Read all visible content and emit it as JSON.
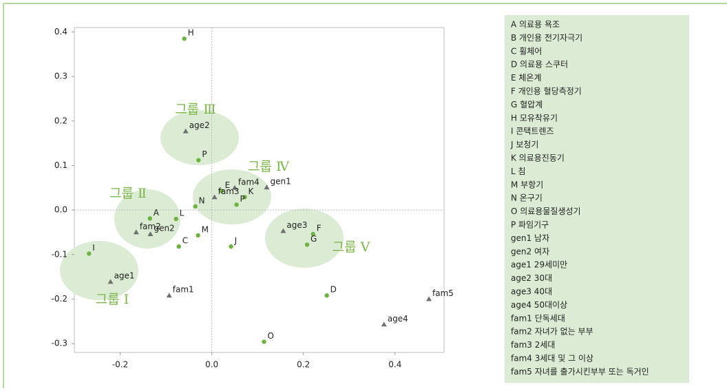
{
  "chart_data": {
    "type": "scatter",
    "xlim": [
      -0.3,
      0.507
    ],
    "ylim": [
      -0.32,
      0.41
    ],
    "xticks": [
      -0.2,
      {
        "value": 0,
        "label": "0.0"
      },
      0.2,
      0.4
    ],
    "yticks": [
      0.4,
      0.3,
      0.2,
      0.1,
      {
        "value": 0,
        "label": "0.0"
      },
      -0.1,
      -0.2,
      -0.3
    ],
    "series": [
      {
        "color": "#6db33f",
        "marker": "circle",
        "labels": [
          "H",
          "P",
          "E",
          "K",
          "P",
          "N",
          "A",
          "L",
          "M",
          "C",
          "J",
          "I",
          "F",
          "G",
          "D",
          "O"
        ],
        "x": [
          -0.06,
          -0.029,
          0.021,
          0.072,
          0.054,
          -0.036,
          -0.135,
          -0.078,
          -0.03,
          -0.072,
          0.042,
          -0.268,
          0.221,
          0.208,
          0.251,
          0.114
        ],
        "values": [
          0.385,
          0.112,
          0.043,
          0.029,
          0.012,
          0.008,
          -0.019,
          -0.02,
          -0.057,
          -0.082,
          -0.082,
          -0.098,
          -0.054,
          -0.078,
          -0.192,
          -0.296
        ]
      },
      {
        "color": "#707070",
        "marker": "triangle",
        "labels": [
          "age2",
          "fam4",
          "gen1",
          "fam3",
          "fam2",
          "gen2",
          "age3",
          "age1",
          "fam1",
          "fam5",
          "age4"
        ],
        "x": [
          -0.057,
          0.05,
          0.12,
          0.006,
          -0.165,
          -0.134,
          0.156,
          -0.221,
          -0.093,
          0.474,
          0.376
        ],
        "values": [
          0.177,
          0.05,
          0.051,
          0.029,
          -0.05,
          -0.054,
          -0.047,
          -0.161,
          -0.192,
          -0.2,
          -0.257
        ]
      }
    ],
    "annotations": [
      "그룹 Ⅰ",
      "그룹 Ⅱ",
      "그룹 Ⅲ",
      "그룹 Ⅳ",
      "그룹 Ⅴ"
    ],
    "legend_text": [
      "A  의료용 욕조",
      "B  개인용 전기자극기",
      "C  휠체어",
      "D  의료용 스쿠터",
      "E  체온계",
      "F 개인용 혈당측정기",
      "G  혈압계",
      "H  모유착유기",
      "I  콘택트렌즈",
      "J  보청기",
      "K  의료용진동기",
      "L  침",
      "M  부항기",
      "N  온구기",
      "O  의료용물질생성기",
      "P  파임기구",
      "gen1  남자",
      "gen2  여자",
      "age1  29세미만",
      "age2  30대",
      "age3  40대",
      "age4  50대이상",
      "fam1  단독세대",
      "fam2  자녀가 없는 부부",
      "fam3  2세대",
      "fam4  3세대 및 그 이상",
      "fam5  자녀를 출가시킨부부 또는 독거인"
    ]
  }
}
